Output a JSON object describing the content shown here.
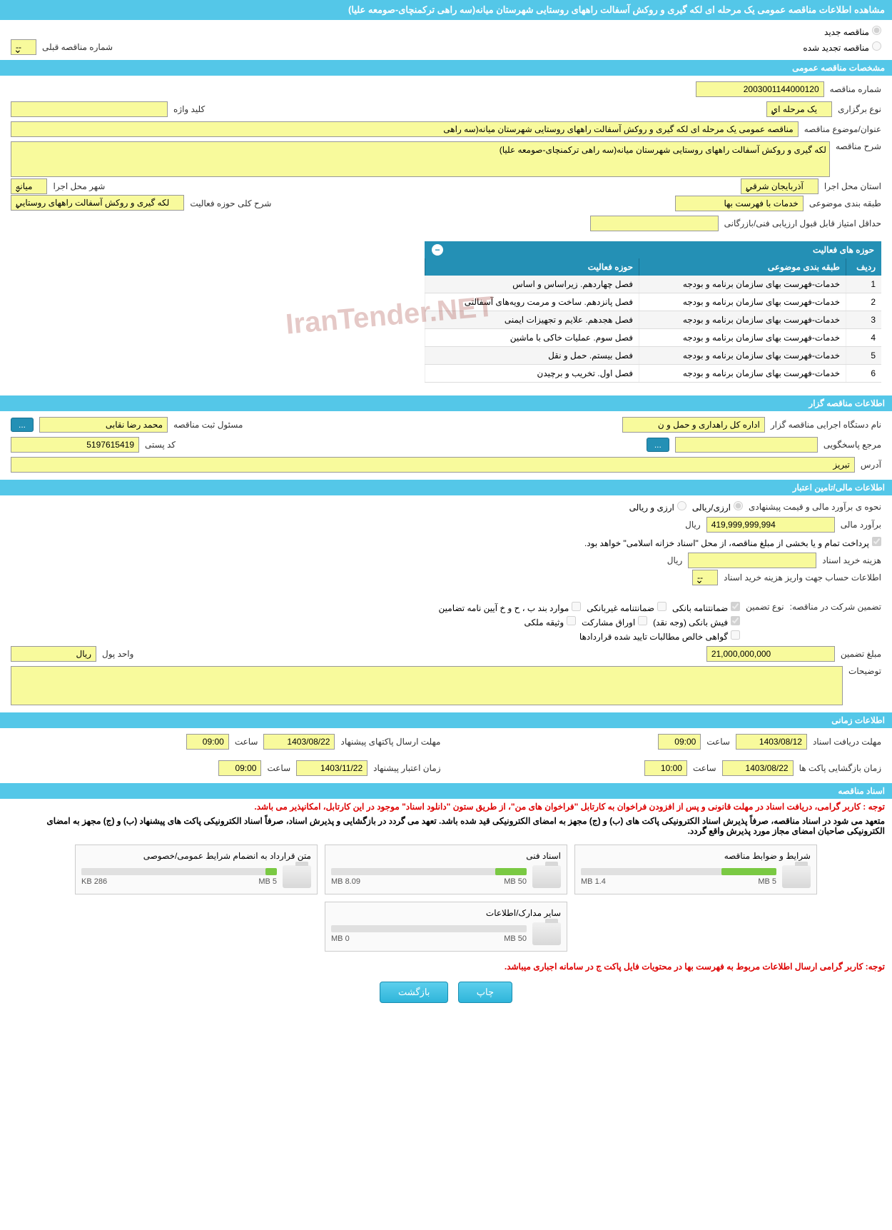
{
  "page_title": "مشاهده اطلاعات مناقصه عمومی یک مرحله ای لکه گیری و روکش آسفالت راههای روستایی شهرستان میانه(سه راهی ترکمنچای-صومعه علیا)",
  "tender_mode": {
    "new_label": "مناقصه جدید",
    "renewed_label": "مناقصه تجدید شده",
    "prev_number_label": "شماره مناقصه قبلی",
    "prev_number_value": "--"
  },
  "sections": {
    "general": "مشخصات مناقصه عمومی",
    "activities": "حوزه های فعالیت",
    "organizer": "اطلاعات مناقصه گزار",
    "financial": "اطلاعات مالی/تامین اعتبار",
    "timing": "اطلاعات زمانی",
    "documents": "اسناد مناقصه"
  },
  "general": {
    "tender_number_label": "شماره مناقصه",
    "tender_number": "2003001144000120",
    "tender_type_label": "نوع برگزاری",
    "tender_type": "یک مرحله ای",
    "keyword_label": "کلید واژه",
    "keyword": "",
    "title_label": "عنوان/موضوع مناقصه",
    "title": "مناقصه عمومی یک مرحله ای لکه گیری و روکش آسفالت راههای روستایی شهرستان میانه(سه راهی",
    "description_label": "شرح مناقصه",
    "description": "لکه گیری و روکش آسفالت راههای روستایی شهرستان میانه(سه راهی ترکمنچای-صومعه علیا)",
    "province_label": "استان محل اجرا",
    "province": "آذربایجان شرقی",
    "city_label": "شهر محل اجرا",
    "city": "میانه",
    "category_label": "طبقه بندی موضوعی",
    "category": "خدمات با فهرست بها",
    "activity_scope_label": "شرح کلی حوزه فعالیت",
    "activity_scope": "لکه گیری و روکش آسفالت راههای روستایی",
    "min_score_label": "حداقل امتیاز قابل قبول ارزیابی فنی/بازرگانی",
    "min_score": ""
  },
  "activities_table": {
    "col_row": "ردیف",
    "col_category": "طبقه بندی موضوعی",
    "col_scope": "حوزه فعالیت",
    "rows": [
      {
        "n": "1",
        "cat": "خدمات-فهرست بهای سازمان برنامه و بودجه",
        "scope": "فصل چهاردهم. زیراساس و اساس"
      },
      {
        "n": "2",
        "cat": "خدمات-فهرست بهای سازمان برنامه و بودجه",
        "scope": "فصل پانزدهم. ساخت و مرمت رویه‌های آسفالتی"
      },
      {
        "n": "3",
        "cat": "خدمات-فهرست بهای سازمان برنامه و بودجه",
        "scope": "فصل هجدهم. علایم و تجهیزات ایمنی"
      },
      {
        "n": "4",
        "cat": "خدمات-فهرست بهای سازمان برنامه و بودجه",
        "scope": "فصل سوم. عملیات خاکی با ماشین"
      },
      {
        "n": "5",
        "cat": "خدمات-فهرست بهای سازمان برنامه و بودجه",
        "scope": "فصل بیستم. حمل و نقل"
      },
      {
        "n": "6",
        "cat": "خدمات-فهرست بهای سازمان برنامه و بودجه",
        "scope": "فصل اول. تخریب و برچیدن"
      }
    ]
  },
  "organizer": {
    "exec_label": "نام دستگاه اجرایی مناقصه گزار",
    "exec_name": "اداره کل راهداری و حمل و ن",
    "registrar_label": "مسئول ثبت مناقصه",
    "registrar_name": "محمد رضا نقابی",
    "more_btn": "...",
    "response_label": "مرجع پاسخگویی",
    "response_val": "",
    "postal_label": "کد پستی",
    "postal_val": "5197615419",
    "address_label": "آدرس",
    "address_val": "تبریز"
  },
  "financial": {
    "estimate_label": "نحوه ی برآورد مالی و قیمت پیشنهادی",
    "opt_rial": "ارزی/ریالی",
    "opt_currency": "ارزی و ریالی",
    "estimate_amount_label": "برآورد مالی",
    "estimate_amount": "419,999,999,994",
    "rial_unit": "ریال",
    "treasury_note": "پرداخت تمام و یا بخشی از مبلغ مناقصه، از محل \"اسناد خزانه اسلامی\" خواهد بود.",
    "doc_cost_label": "هزینه خرید اسناد",
    "doc_cost_val": "",
    "deposit_account_label": "اطلاعات حساب جهت واریز هزینه خرید اسناد",
    "deposit_account_val": "--",
    "guarantee_label": "تضمین شرکت در مناقصه:",
    "guarantee_type_label": "نوع تضمین",
    "g_bank": "ضمانتنامه بانکی",
    "g_nonbank": "ضمانتنامه غیربانکی",
    "g_cases": "موارد بند ب ، ح و خ آیین نامه تضامین",
    "g_cash": "فیش بانکی (وجه نقد)",
    "g_securities": "اوراق مشارکت",
    "g_deed": "وثیقه ملکی",
    "g_receivables": "گواهی خالص مطالبات تایید شده قراردادها",
    "guarantee_amount_label": "مبلغ تضمین",
    "guarantee_amount": "21,000,000,000",
    "currency_unit_label": "واحد پول",
    "currency_unit": "ریال",
    "remarks_label": "توضیحات",
    "remarks_val": ""
  },
  "timing": {
    "doc_receive_label": "مهلت دریافت اسناد",
    "doc_receive_date": "1403/08/12",
    "doc_receive_time": "09:00",
    "proposal_send_label": "مهلت ارسال پاکتهای پیشنهاد",
    "proposal_send_date": "1403/08/22",
    "proposal_send_time": "09:00",
    "opening_label": "زمان بازگشایی پاکت ها",
    "opening_date": "1403/08/22",
    "opening_time": "10:00",
    "validity_label": "زمان اعتبار پیشنهاد",
    "validity_date": "1403/11/22",
    "validity_time": "09:00",
    "time_word": "ساعت"
  },
  "documents": {
    "notice1": "توجه : کاربر گرامی، دریافت اسناد در مهلت قانونی و پس از افزودن فراخوان به کارتابل \"فراخوان های من\"، از طریق ستون \"دانلود اسناد\" موجود در این کارتابل، امکانپذیر می باشد.",
    "notice2": "متعهد می شود در اسناد مناقصه، صرفاً پذیرش اسناد الکترونیکی پاکت های (ب) و (ج) مجهز به امضای الکترونیکی قید شده باشد. تعهد می گردد در بازگشایی و پذیرش اسناد، صرفاً اسناد الکترونیکی پاکت های پیشنهاد (ب) و (ج) مجهز به امضای الکترونیکی صاحبان امضای مجاز مورد پذیرش واقع گردد.",
    "files": [
      {
        "title": "شرایط و ضوابط مناقصه",
        "used": "1.4 MB",
        "total": "5 MB",
        "pct": 28
      },
      {
        "title": "اسناد فنی",
        "used": "8.09 MB",
        "total": "50 MB",
        "pct": 16
      },
      {
        "title": "متن قرارداد به انضمام شرایط عمومی/خصوصی",
        "used": "286 KB",
        "total": "5 MB",
        "pct": 6
      },
      {
        "title": "سایر مدارک/اطلاعات",
        "used": "0 MB",
        "total": "50 MB",
        "pct": 0
      }
    ],
    "footer_notice": "توجه: کاربر گرامی ارسال اطلاعات مربوط به فهرست بها در محتویات فایل پاکت ج در سامانه اجباری میباشد."
  },
  "buttons": {
    "print": "چاپ",
    "back": "بازگشت"
  },
  "colors": {
    "header_bg": "#54c7e8",
    "table_hdr_bg": "#2490b5",
    "input_bg": "#f8fa9c",
    "btn_bg": "#2fb5da",
    "red_text": "#d00",
    "progress_fill": "#7ac943"
  }
}
